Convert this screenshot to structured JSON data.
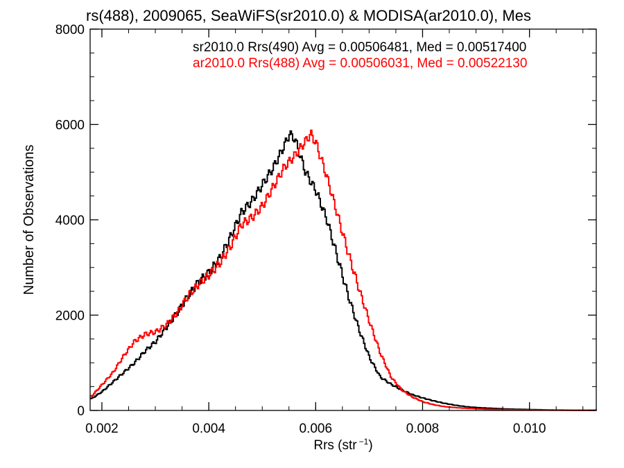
{
  "chart_data": {
    "type": "line",
    "title": "rs(488), 2009065, SeaWiFS(sr2010.0) & MODISA(ar2010.0), Mes",
    "xlabel": "Rrs (str",
    "xlabel_sup": "−1",
    "xlabel_close": ")",
    "ylabel": "Number of Observations",
    "xlim": [
      0.00178,
      0.01125
    ],
    "ylim": [
      0,
      8000
    ],
    "xticks": [
      0.002,
      0.004,
      0.006,
      0.008,
      0.01
    ],
    "xtick_labels": [
      "0.002",
      "0.004",
      "0.006",
      "0.008",
      "0.010"
    ],
    "yticks": [
      0,
      2000,
      4000,
      6000,
      8000
    ],
    "ytick_labels": [
      "0",
      "2000",
      "4000",
      "6000",
      "8000"
    ],
    "grid": false,
    "legend_position": "top-right",
    "annotations": [
      {
        "text": "sr2010.0 Rrs(490) Avg = 0.00506481, Med = 0.00517400",
        "color": "#000000"
      },
      {
        "text": "ar2010.0 Rrs(488) Avg = 0.00506031, Med = 0.00522130",
        "color": "#ff0000"
      }
    ],
    "series": [
      {
        "name": "sr2010.0 Rrs(490)",
        "color": "#000000",
        "x": [
          0.0018,
          0.002,
          0.0022,
          0.0024,
          0.0026,
          0.0028,
          0.003,
          0.0032,
          0.0034,
          0.0036,
          0.0038,
          0.004,
          0.0042,
          0.0044,
          0.0046,
          0.0048,
          0.005,
          0.0052,
          0.0054,
          0.0055,
          0.0056,
          0.0058,
          0.006,
          0.0062,
          0.0064,
          0.0066,
          0.0068,
          0.007,
          0.0072,
          0.0074,
          0.0076,
          0.0078,
          0.008,
          0.0082,
          0.0084,
          0.0086,
          0.0088,
          0.009,
          0.0092,
          0.0094,
          0.0096,
          0.0098,
          0.01,
          0.0102,
          0.0104,
          0.0106,
          0.0108,
          0.011,
          0.01125
        ],
        "y": [
          250,
          400,
          600,
          800,
          1000,
          1250,
          1450,
          1750,
          2050,
          2400,
          2700,
          2900,
          3200,
          3650,
          4150,
          4400,
          4750,
          5100,
          5550,
          5800,
          5700,
          5000,
          4600,
          4000,
          3200,
          2400,
          1700,
          1100,
          700,
          550,
          430,
          330,
          260,
          200,
          150,
          110,
          80,
          60,
          50,
          40,
          30,
          25,
          20,
          15,
          10,
          8,
          5,
          5,
          5
        ]
      },
      {
        "name": "ar2010.0 Rrs(488)",
        "color": "#ff0000",
        "x": [
          0.0018,
          0.002,
          0.0022,
          0.0024,
          0.0026,
          0.0028,
          0.003,
          0.0032,
          0.0034,
          0.0036,
          0.0038,
          0.004,
          0.0042,
          0.0044,
          0.0046,
          0.0048,
          0.005,
          0.0052,
          0.0054,
          0.0056,
          0.0058,
          0.0059,
          0.006,
          0.0062,
          0.0064,
          0.0066,
          0.0068,
          0.007,
          0.0072,
          0.0074,
          0.0076,
          0.0078,
          0.008,
          0.0082,
          0.0084,
          0.0086,
          0.0088,
          0.009,
          0.0092,
          0.0094,
          0.0096,
          0.0098,
          0.01,
          0.0102,
          0.0104,
          0.0106,
          0.0108,
          0.011,
          0.01125
        ],
        "y": [
          300,
          550,
          800,
          1150,
          1450,
          1600,
          1650,
          1800,
          2050,
          2400,
          2650,
          2850,
          3100,
          3450,
          3900,
          4050,
          4300,
          4700,
          5100,
          5350,
          5650,
          5800,
          5600,
          4900,
          4100,
          3300,
          2550,
          1850,
          1200,
          700,
          430,
          280,
          180,
          120,
          80,
          60,
          45,
          35,
          25,
          20,
          15,
          12,
          10,
          8,
          6,
          5,
          4,
          3,
          3
        ]
      }
    ]
  }
}
